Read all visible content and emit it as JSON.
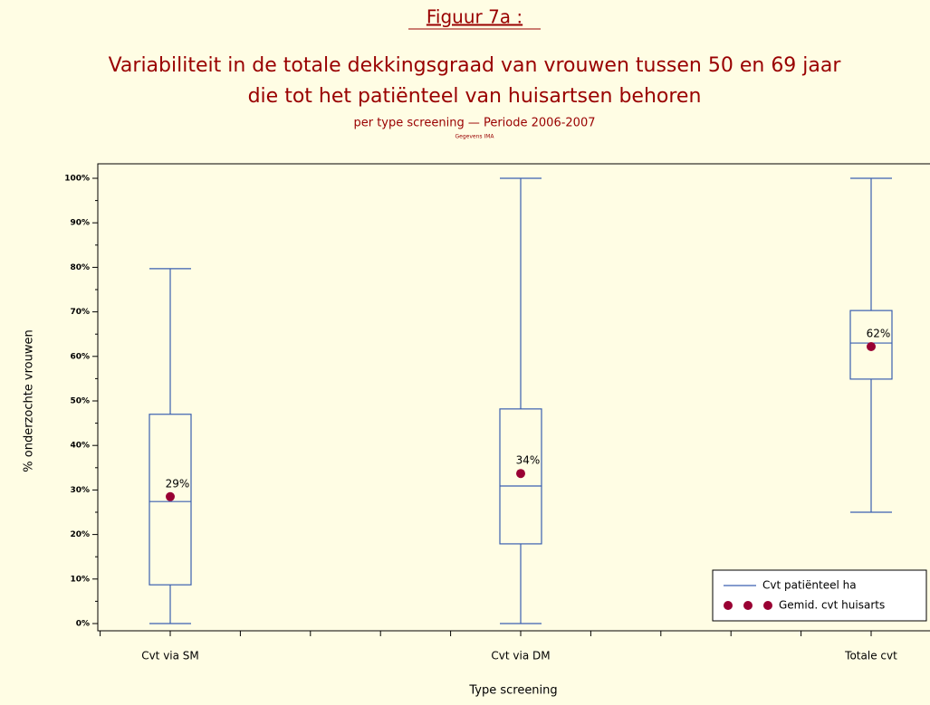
{
  "chart_data": {
    "type": "box",
    "figure_label": "Figuur 7a :",
    "title": [
      "Variabiliteit in de totale dekkingsgraad van vrouwen tussen 50 en 69 jaar",
      "die tot het patiënteel van huisartsen behoren"
    ],
    "subtitle": "per type screening — Periode 2006-2007",
    "source": "Gegevens IMA",
    "x_label": "Type screening",
    "y_label": "% onderzochte vrouwen",
    "categories": [
      "Cvt via SM",
      "Cvt via DM",
      "Totale cvt"
    ],
    "ylim": [
      0,
      100
    ],
    "yticks": [
      {
        "value": 0,
        "label": "0%"
      },
      {
        "value": 10,
        "label": "10%"
      },
      {
        "value": 20,
        "label": "20%"
      },
      {
        "value": 30,
        "label": "30%"
      },
      {
        "value": 40,
        "label": "40%"
      },
      {
        "value": 50,
        "label": "50%"
      },
      {
        "value": 60,
        "label": "60%"
      },
      {
        "value": 70,
        "label": "70%"
      },
      {
        "value": 80,
        "label": "80%"
      },
      {
        "value": 90,
        "label": "90%"
      },
      {
        "value": 100,
        "label": "100%"
      }
    ],
    "legend": "lower right",
    "series": [
      {
        "name": "Cvt patiënteel ha",
        "color": "#3a5fb0",
        "low": [
          0,
          0,
          25.0
        ],
        "q1": [
          8.7,
          17.9,
          54.9
        ],
        "median": [
          27.4,
          30.9,
          63.0
        ],
        "q3": [
          47.0,
          48.2,
          70.3
        ],
        "high": [
          79.7,
          100,
          100
        ]
      },
      {
        "name": "Gemid. cvt huisarts",
        "color": "#990033",
        "values": [
          28.5,
          33.7,
          62.2
        ],
        "value_labels": [
          "29%",
          "34%",
          "62%"
        ]
      }
    ]
  }
}
